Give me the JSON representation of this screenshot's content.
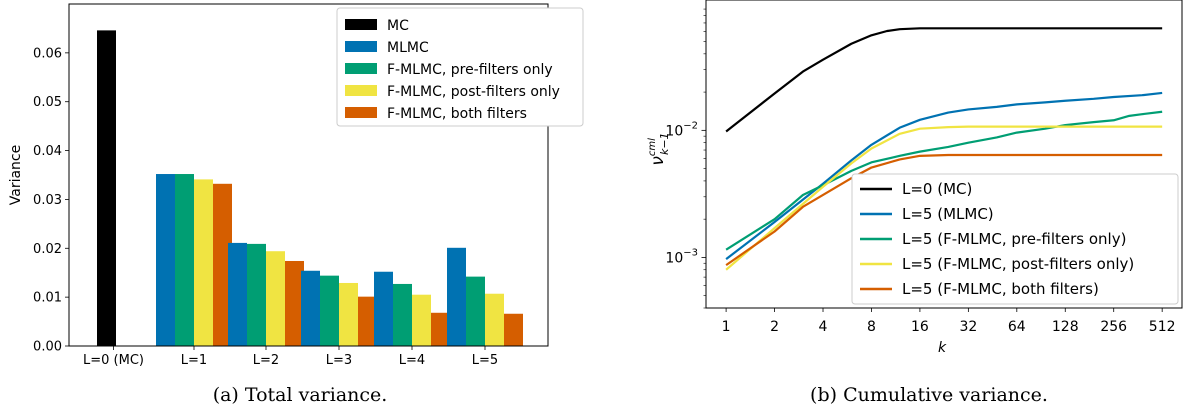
{
  "chart_data": [
    {
      "type": "bar",
      "categories": [
        "L=0 (MC)",
        "L=1",
        "L=2",
        "L=3",
        "L=4",
        "L=5"
      ],
      "ylabel": "Variance",
      "xlabel": "",
      "ylim": [
        0,
        0.07
      ],
      "yticks": [
        "0.00",
        "0.01",
        "0.02",
        "0.03",
        "0.04",
        "0.05",
        "0.06"
      ],
      "legend_position": "top-right",
      "caption": "(a)  Total variance.",
      "series": [
        {
          "name": "MC",
          "color": "#000000",
          "values": [
            0.0646,
            null,
            null,
            null,
            null,
            null
          ]
        },
        {
          "name": "MLMC",
          "color": "#0072b2",
          "values": [
            null,
            0.0352,
            0.0211,
            0.0154,
            0.0152,
            0.0201
          ]
        },
        {
          "name": "F-MLMC, pre-filters only",
          "color": "#009e73",
          "values": [
            null,
            0.0352,
            0.0209,
            0.0144,
            0.0127,
            0.0142
          ]
        },
        {
          "name": "F-MLMC, post-filters only",
          "color": "#f0e442",
          "values": [
            null,
            0.0341,
            0.0194,
            0.0129,
            0.0105,
            0.0107
          ]
        },
        {
          "name": "F-MLMC, both filters",
          "color": "#d55e00",
          "values": [
            null,
            0.0332,
            0.0174,
            0.0101,
            0.0068,
            0.0066
          ]
        }
      ]
    },
    {
      "type": "line",
      "xscale": "log2",
      "yscale": "log",
      "xlabel": "k",
      "ylabel_main": "ν",
      "ylabel_sup": "cml",
      "ylabel_sub": "k−1",
      "x_ticks": [
        "1",
        "2",
        "4",
        "8",
        "16",
        "32",
        "64",
        "128",
        "256",
        "512"
      ],
      "y_ticks": [
        {
          "base": "10",
          "exp": "−2",
          "value": 0.01
        },
        {
          "base": "10",
          "exp": "−3",
          "value": 0.001
        }
      ],
      "xlim": [
        0.75,
        680
      ],
      "ylim": [
        0.0004,
        0.11
      ],
      "legend_position": "lower-right",
      "caption": "(b)  Cumulative variance.",
      "series": [
        {
          "name": "L=0 (MC)",
          "color": "#000000",
          "x": [
            1,
            2,
            3,
            4,
            6,
            8,
            10,
            12,
            16,
            32,
            64,
            128,
            256,
            512
          ],
          "y": [
            0.0098,
            0.0195,
            0.029,
            0.036,
            0.048,
            0.056,
            0.0605,
            0.0625,
            0.0635,
            0.0635,
            0.0635,
            0.0635,
            0.0635,
            0.0635
          ]
        },
        {
          "name": "L=5 (MLMC)",
          "color": "#0072b2",
          "x": [
            1,
            2,
            4,
            6,
            8,
            12,
            16,
            24,
            32,
            48,
            64,
            96,
            128,
            192,
            256,
            384,
            512
          ],
          "y": [
            0.00097,
            0.0019,
            0.0038,
            0.0058,
            0.0077,
            0.0105,
            0.0121,
            0.0138,
            0.0146,
            0.0153,
            0.016,
            0.0166,
            0.0171,
            0.0177,
            0.0183,
            0.0189,
            0.0197
          ]
        },
        {
          "name": "L=5 (F-MLMC, pre-filters only)",
          "color": "#009e73",
          "x": [
            1,
            2,
            3,
            4,
            6,
            8,
            12,
            16,
            24,
            32,
            48,
            64,
            96,
            128,
            192,
            256,
            320,
            384,
            512
          ],
          "y": [
            0.00115,
            0.002,
            0.0031,
            0.0037,
            0.0048,
            0.0056,
            0.0063,
            0.0068,
            0.0074,
            0.008,
            0.0088,
            0.0096,
            0.0103,
            0.011,
            0.0116,
            0.012,
            0.013,
            0.0134,
            0.014
          ]
        },
        {
          "name": "L=5 (F-MLMC, post-filters only)",
          "color": "#f0e442",
          "x": [
            1,
            2,
            4,
            6,
            8,
            12,
            16,
            24,
            32,
            64,
            128,
            256,
            512
          ],
          "y": [
            0.0008,
            0.0017,
            0.0036,
            0.0055,
            0.0072,
            0.0094,
            0.0103,
            0.0106,
            0.0107,
            0.0107,
            0.0107,
            0.0107,
            0.0107
          ]
        },
        {
          "name": "L=5 (F-MLMC, both filters)",
          "color": "#d55e00",
          "x": [
            1,
            2,
            3,
            4,
            6,
            8,
            12,
            16,
            24,
            32,
            64,
            128,
            256,
            512
          ],
          "y": [
            0.00087,
            0.0016,
            0.0025,
            0.0031,
            0.0042,
            0.0051,
            0.0059,
            0.0063,
            0.0064,
            0.0064,
            0.0064,
            0.0064,
            0.0064,
            0.0064
          ]
        }
      ]
    }
  ]
}
